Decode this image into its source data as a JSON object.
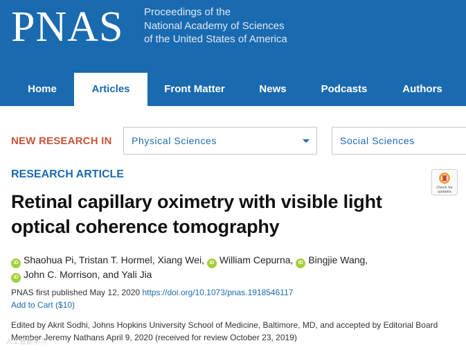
{
  "header": {
    "logo": "PNAS",
    "tagline": [
      "Proceedings of the",
      "National Academy of Sciences",
      "of the United States of America"
    ]
  },
  "nav": {
    "items": [
      {
        "label": "Home"
      },
      {
        "label": "Articles"
      },
      {
        "label": "Front Matter"
      },
      {
        "label": "News"
      },
      {
        "label": "Podcasts"
      },
      {
        "label": "Authors"
      }
    ],
    "active": "Articles"
  },
  "new_research": {
    "label": "NEW RESEARCH IN",
    "selects": [
      {
        "value": "Physical Sciences"
      },
      {
        "value": "Social Sciences"
      }
    ]
  },
  "article": {
    "type": "RESEARCH ARTICLE",
    "title_line1": "Retinal capillary oximetry with visible light",
    "title_line2": "optical coherence tomography",
    "check_updates": "Check for updates",
    "authors": {
      "a1": "Shaohua Pi, Tristan T. Hormel, Xiang Wei,",
      "a2": "William Cepurna,",
      "a3": "Bingjie Wang,",
      "a4": "John C. Morrison, and Yali Jia"
    },
    "published": "PNAS first published May 12, 2020",
    "doi": "https://doi.org/10.1073/pnas.1918546117",
    "cart": "Add to Cart ($10)",
    "edited": "Edited by Akrit Sodhi, Johns Hopkins University School of Medicine, Baltimore, MD, and accepted by Editorial Board Member Jeremy Nathans April 9, 2020 (received for review October 23, 2019)"
  },
  "orcid_icon": "iD",
  "watermark": "人工智能学习",
  "colors": {
    "brand_blue": "#1a6ab0",
    "accent_red": "#c8533a",
    "orcid_green": "#a6ce39"
  }
}
